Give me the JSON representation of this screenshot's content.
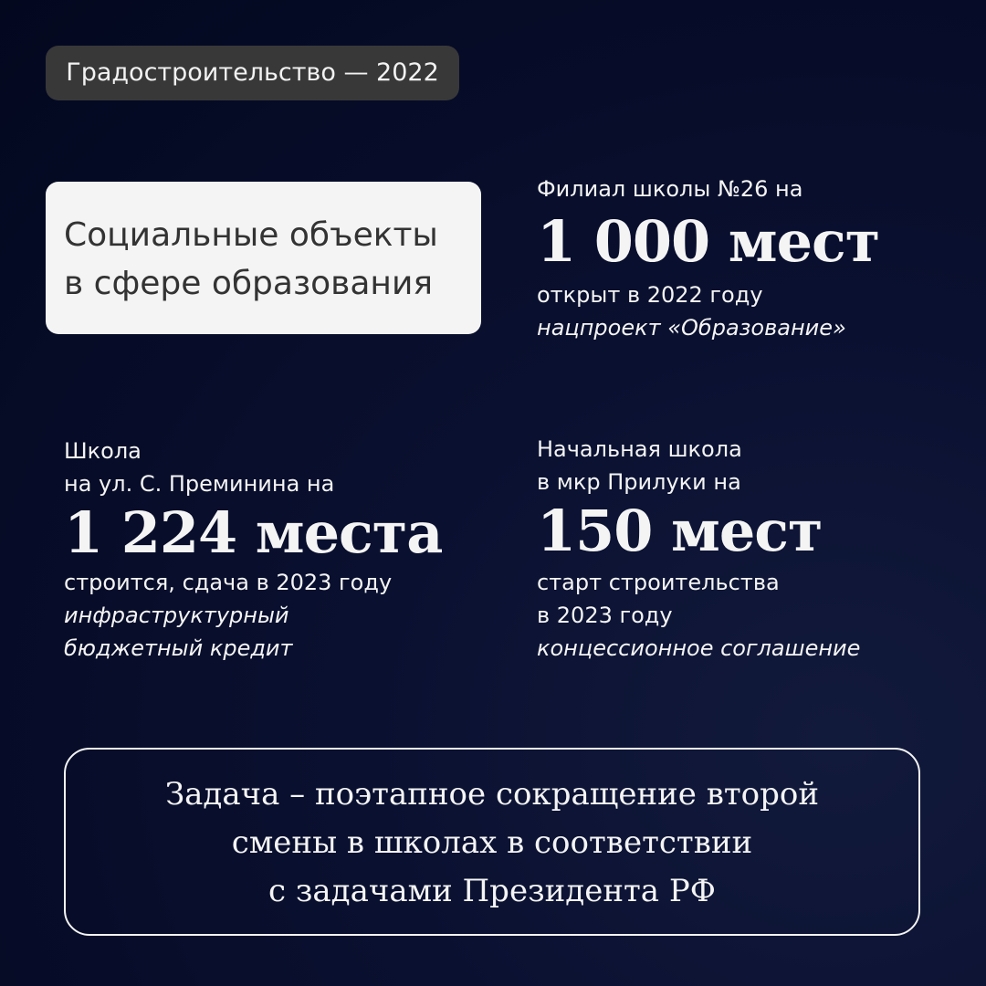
{
  "badge": "Градостроительство — 2022",
  "topic": {
    "line1": "Социальные объекты",
    "line2": "в сфере образования"
  },
  "blocks": [
    {
      "heading": [
        "Филиал школы №26 на"
      ],
      "value": "1 000 мест",
      "status": [
        "открыт в 2022 году"
      ],
      "source": [
        "нацпроект «Образование»"
      ]
    },
    {
      "heading": [
        "Школа",
        "на ул. С. Преминина на"
      ],
      "value": "1 224 места",
      "status": [
        "строится, сдача в 2023 году"
      ],
      "source": [
        "инфраструктурный",
        "бюджетный кредит"
      ]
    },
    {
      "heading": [
        "Начальная школа",
        "в мкр Прилуки на"
      ],
      "value": "150 мест",
      "status": [
        "старт строительства",
        "в 2023 году"
      ],
      "source": [
        "концессионное соглашение"
      ]
    }
  ],
  "goal": {
    "lines": [
      "Задача – поэтапное сокращение второй",
      "смены в школах в соответствии",
      "с задачами Президента РФ"
    ]
  },
  "colors": {
    "background": "#03081f",
    "badge": "#383838",
    "topic_box": "#f4f4f4",
    "text": "#f4f4f4"
  }
}
